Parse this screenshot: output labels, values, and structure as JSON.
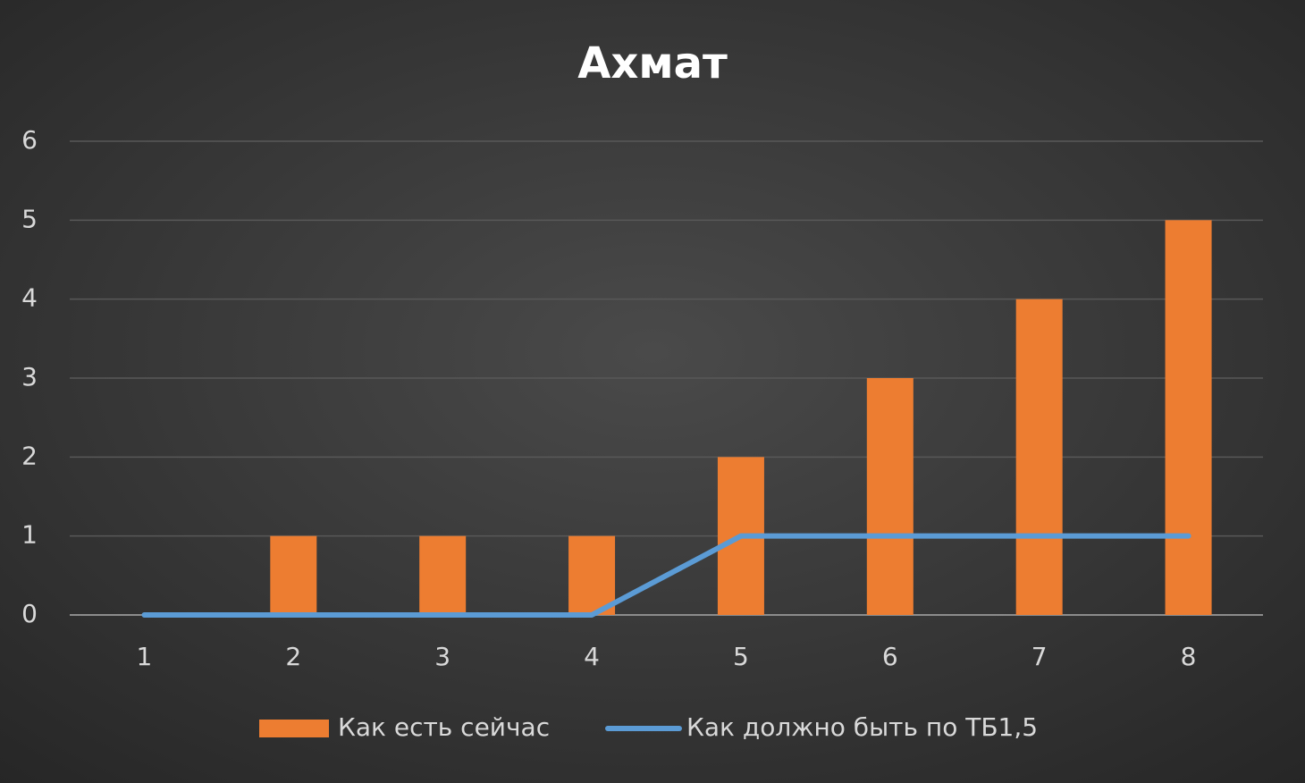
{
  "chart_data": {
    "type": "bar",
    "title": "Ахмат",
    "categories": [
      "1",
      "2",
      "3",
      "4",
      "5",
      "6",
      "7",
      "8"
    ],
    "series": [
      {
        "name": "Как есть сейчас",
        "type": "bar",
        "color": "#ed7d31",
        "values": [
          0,
          1,
          1,
          1,
          2,
          3,
          4,
          5
        ]
      },
      {
        "name": "Как должно быть по ТБ1,5",
        "type": "line",
        "color": "#5b9bd5",
        "values": [
          0,
          0,
          0,
          0,
          1,
          1,
          1,
          1
        ]
      }
    ],
    "ylim": [
      0,
      6
    ],
    "yticks": [
      0,
      1,
      2,
      3,
      4,
      5,
      6
    ],
    "grid": true,
    "legend": "bottom"
  }
}
